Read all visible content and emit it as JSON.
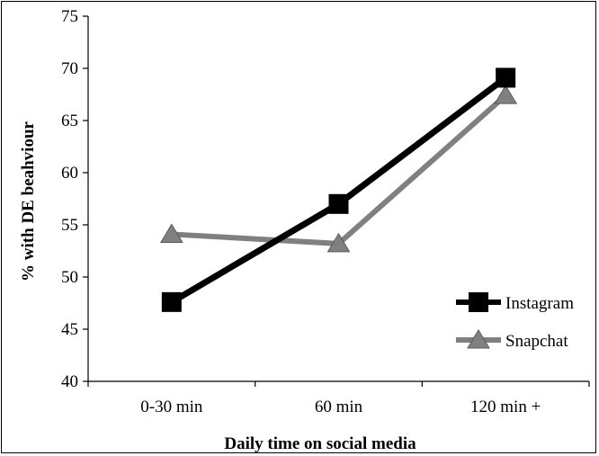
{
  "chart_data": {
    "type": "line",
    "title": "",
    "xlabel": "Daily time on social media",
    "ylabel": "% with DE beahviour",
    "categories": [
      "0-30 min",
      "60 min",
      "120 min +"
    ],
    "ylim": [
      40,
      75
    ],
    "yticks": [
      40,
      45,
      50,
      55,
      60,
      65,
      70,
      75
    ],
    "grid": false,
    "legend_position": "bottom-right",
    "series": [
      {
        "name": "Instagram",
        "values": [
          47.6,
          57.0,
          69.1
        ],
        "color": "#000000",
        "marker": "square"
      },
      {
        "name": "Snapchat",
        "values": [
          54.1,
          53.2,
          67.4
        ],
        "color": "#808080",
        "marker": "triangle"
      }
    ]
  }
}
